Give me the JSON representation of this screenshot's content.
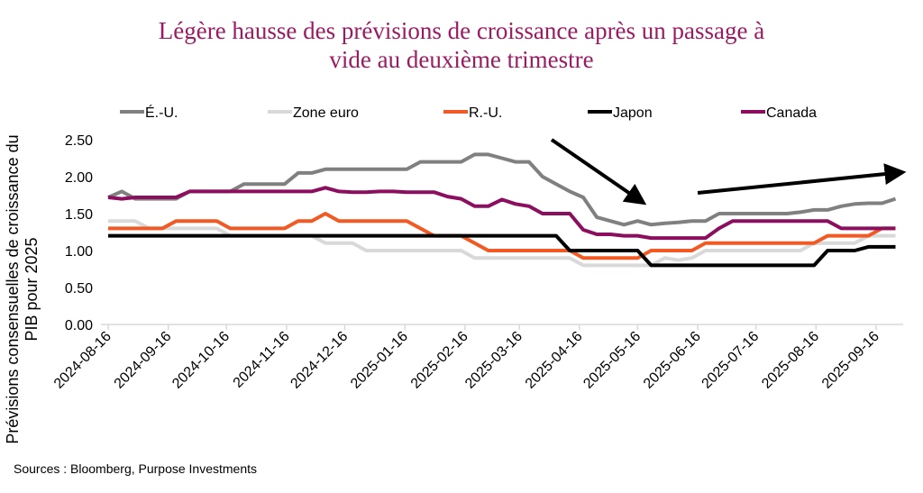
{
  "chart_data": {
    "type": "line",
    "title": "Légère hausse des prévisions de croissance après un passage à vide au deuxième trimestre",
    "title_lines": [
      "Légère hausse des prévisions de croissance après un passage à",
      "vide au deuxième trimestre"
    ],
    "ylabel": "Prévisions consensuelles de croissance du PIB pour 2025",
    "xlabel": "",
    "ylim": [
      0,
      2.5
    ],
    "yticks": [
      "0.00",
      "0.50",
      "1.00",
      "1.50",
      "2.00",
      "2.50"
    ],
    "xticks": [
      "2024-08-16",
      "2024-09-16",
      "2024-10-16",
      "2024-11-16",
      "2024-12-16",
      "2025-01-16",
      "2025-02-16",
      "2025-03-16",
      "2025-04-16",
      "2025-05-16",
      "2025-06-16",
      "2025-07-16",
      "2025-08-16",
      "2025-09-16"
    ],
    "grid": false,
    "legend_position": "top",
    "source": "Sources : Bloomberg, Purpose Investments",
    "annotations": [
      {
        "type": "arrow",
        "direction": "down",
        "from": [
          "2025-04-16",
          2.5
        ],
        "to": [
          "2025-05-16",
          1.7
        ]
      },
      {
        "type": "arrow",
        "direction": "up",
        "from": [
          "2025-06-16",
          1.78
        ],
        "to": [
          "2025-09-26",
          2.05
        ]
      }
    ],
    "x": [
      "2024-08-16",
      "2024-08-23",
      "2024-08-30",
      "2024-09-06",
      "2024-09-13",
      "2024-09-20",
      "2024-09-27",
      "2024-10-04",
      "2024-10-11",
      "2024-10-18",
      "2024-10-25",
      "2024-11-01",
      "2024-11-08",
      "2024-11-15",
      "2024-11-22",
      "2024-11-29",
      "2024-12-06",
      "2024-12-13",
      "2024-12-20",
      "2024-12-27",
      "2025-01-03",
      "2025-01-10",
      "2025-01-17",
      "2025-01-24",
      "2025-01-31",
      "2025-02-07",
      "2025-02-14",
      "2025-02-21",
      "2025-02-28",
      "2025-03-07",
      "2025-03-14",
      "2025-03-21",
      "2025-03-28",
      "2025-04-04",
      "2025-04-11",
      "2025-04-18",
      "2025-04-25",
      "2025-05-02",
      "2025-05-09",
      "2025-05-16",
      "2025-05-23",
      "2025-05-30",
      "2025-06-06",
      "2025-06-13",
      "2025-06-20",
      "2025-06-27",
      "2025-07-04",
      "2025-07-11",
      "2025-07-18",
      "2025-07-25",
      "2025-08-01",
      "2025-08-08",
      "2025-08-15",
      "2025-08-22",
      "2025-08-29",
      "2025-09-05",
      "2025-09-12",
      "2025-09-19",
      "2025-09-26"
    ],
    "series": [
      {
        "name": "Zone euro",
        "color": "#d9d9d9",
        "values": [
          1.4,
          1.4,
          1.4,
          1.3,
          1.3,
          1.3,
          1.3,
          1.3,
          1.3,
          1.2,
          1.2,
          1.2,
          1.2,
          1.2,
          1.2,
          1.2,
          1.1,
          1.1,
          1.1,
          1.0,
          1.0,
          1.0,
          1.0,
          1.0,
          1.0,
          1.0,
          1.0,
          0.9,
          0.9,
          0.9,
          0.9,
          0.9,
          0.9,
          0.9,
          0.9,
          0.8,
          0.8,
          0.8,
          0.8,
          0.8,
          0.8,
          0.9,
          0.87,
          0.9,
          1.0,
          1.0,
          1.0,
          1.0,
          1.0,
          1.0,
          1.0,
          1.0,
          1.1,
          1.1,
          1.1,
          1.1,
          1.2,
          1.2,
          1.2
        ]
      },
      {
        "name": "É.-U.",
        "color": "#808080",
        "values": [
          1.72,
          1.8,
          1.7,
          1.7,
          1.7,
          1.7,
          1.8,
          1.8,
          1.8,
          1.8,
          1.9,
          1.9,
          1.9,
          1.9,
          2.05,
          2.05,
          2.1,
          2.1,
          2.1,
          2.1,
          2.1,
          2.1,
          2.1,
          2.2,
          2.2,
          2.2,
          2.2,
          2.3,
          2.3,
          2.25,
          2.2,
          2.2,
          2.0,
          1.9,
          1.8,
          1.72,
          1.45,
          1.4,
          1.35,
          1.4,
          1.35,
          1.37,
          1.38,
          1.4,
          1.4,
          1.5,
          1.5,
          1.5,
          1.5,
          1.5,
          1.5,
          1.52,
          1.55,
          1.55,
          1.6,
          1.63,
          1.64,
          1.64,
          1.7
        ]
      },
      {
        "name": "R.-U.",
        "color": "#f15a24",
        "values": [
          1.3,
          1.3,
          1.3,
          1.3,
          1.3,
          1.4,
          1.4,
          1.4,
          1.4,
          1.3,
          1.3,
          1.3,
          1.3,
          1.3,
          1.4,
          1.4,
          1.5,
          1.4,
          1.4,
          1.4,
          1.4,
          1.4,
          1.4,
          1.3,
          1.2,
          1.2,
          1.2,
          1.1,
          1.0,
          1.0,
          1.0,
          1.0,
          1.0,
          1.0,
          1.0,
          0.9,
          0.9,
          0.9,
          0.9,
          0.9,
          1.0,
          1.0,
          1.0,
          1.0,
          1.1,
          1.1,
          1.1,
          1.1,
          1.1,
          1.1,
          1.1,
          1.1,
          1.1,
          1.2,
          1.2,
          1.2,
          1.2,
          1.3,
          1.3
        ]
      },
      {
        "name": "Japon",
        "color": "#000000",
        "values": [
          1.2,
          1.2,
          1.2,
          1.2,
          1.2,
          1.2,
          1.2,
          1.2,
          1.2,
          1.2,
          1.2,
          1.2,
          1.2,
          1.2,
          1.2,
          1.2,
          1.2,
          1.2,
          1.2,
          1.2,
          1.2,
          1.2,
          1.2,
          1.2,
          1.2,
          1.2,
          1.2,
          1.2,
          1.2,
          1.2,
          1.2,
          1.2,
          1.2,
          1.2,
          1.0,
          1.0,
          1.0,
          1.0,
          1.0,
          1.0,
          0.8,
          0.8,
          0.8,
          0.8,
          0.8,
          0.8,
          0.8,
          0.8,
          0.8,
          0.8,
          0.8,
          0.8,
          0.8,
          1.0,
          1.0,
          1.0,
          1.05,
          1.05,
          1.05
        ]
      },
      {
        "name": "Canada",
        "color": "#8b0f5e",
        "values": [
          1.72,
          1.7,
          1.72,
          1.72,
          1.72,
          1.72,
          1.8,
          1.8,
          1.8,
          1.8,
          1.8,
          1.8,
          1.8,
          1.8,
          1.8,
          1.8,
          1.85,
          1.8,
          1.79,
          1.79,
          1.8,
          1.8,
          1.79,
          1.79,
          1.79,
          1.73,
          1.7,
          1.6,
          1.6,
          1.69,
          1.63,
          1.6,
          1.5,
          1.5,
          1.5,
          1.28,
          1.22,
          1.22,
          1.2,
          1.2,
          1.17,
          1.17,
          1.17,
          1.17,
          1.17,
          1.3,
          1.4,
          1.4,
          1.4,
          1.4,
          1.4,
          1.4,
          1.4,
          1.4,
          1.3,
          1.3,
          1.3,
          1.3,
          1.3
        ]
      }
    ],
    "legend_order": [
      "É.-U.",
      "Zone euro",
      "R.-U.",
      "Japon",
      "Canada"
    ]
  }
}
